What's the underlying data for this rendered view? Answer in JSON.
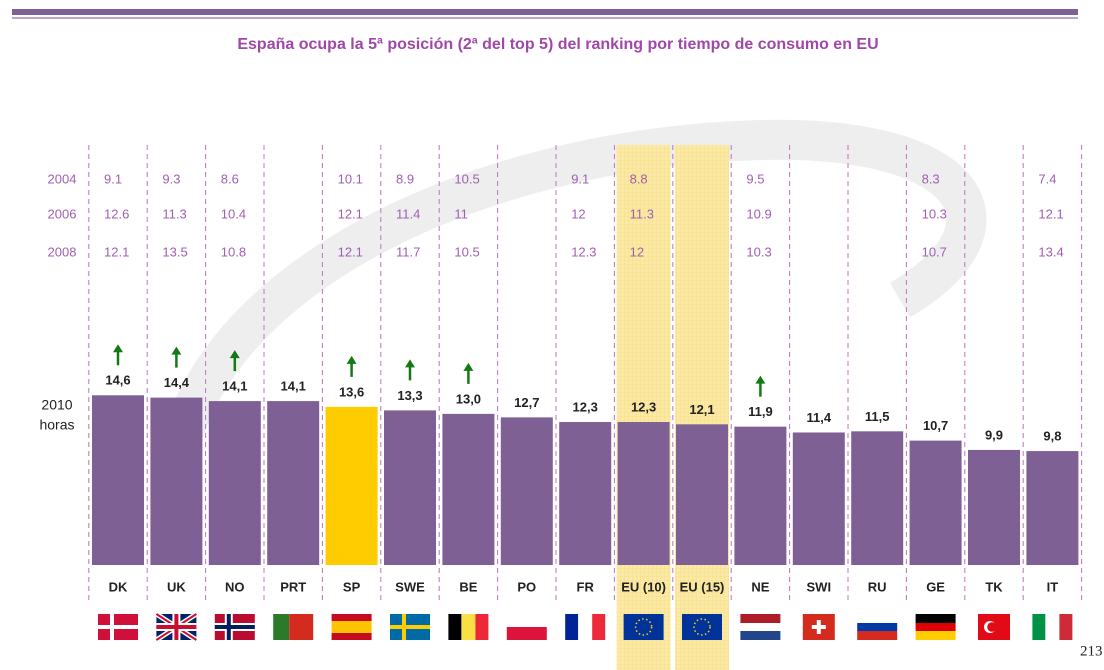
{
  "chart_data": {
    "type": "bar",
    "title": "España ocupa la 5ª posición (2ª del top 5) del ranking por tiempo de consumo en EU",
    "categories": [
      "DK",
      "UK",
      "NO",
      "PRT",
      "SP",
      "SWE",
      "BE",
      "PO",
      "FR",
      "EU (10)",
      "EU (15)",
      "NE",
      "SWI",
      "RU",
      "GE",
      "TK",
      "IT"
    ],
    "series_label": "2010",
    "unit_label": "horas",
    "values": [
      14.6,
      14.4,
      14.1,
      14.1,
      13.6,
      13.3,
      13.0,
      12.7,
      12.3,
      12.3,
      12.1,
      11.9,
      11.4,
      11.5,
      10.7,
      9.9,
      9.8
    ],
    "value_labels": [
      "14,6",
      "14,4",
      "14,1",
      "14,1",
      "13,6",
      "13,3",
      "13,0",
      "12,7",
      "12,3",
      "12,3",
      "12,1",
      "11,9",
      "11,4",
      "11,5",
      "10,7",
      "9,9",
      "9,8"
    ],
    "colors": [
      "#7f6095",
      "#7f6095",
      "#7f6095",
      "#7f6095",
      "#ffcc00",
      "#7f6095",
      "#7f6095",
      "#7f6095",
      "#7f6095",
      "#7f6095",
      "#7f6095",
      "#7f6095",
      "#7f6095",
      "#7f6095",
      "#7f6095",
      "#7f6095",
      "#7f6095"
    ],
    "up_arrows": [
      true,
      true,
      true,
      false,
      true,
      true,
      true,
      false,
      false,
      false,
      false,
      true,
      false,
      false,
      false,
      false,
      false
    ],
    "highlight_columns": [
      false,
      false,
      false,
      false,
      false,
      false,
      false,
      false,
      false,
      true,
      true,
      false,
      false,
      false,
      false,
      false,
      false
    ],
    "ylim": [
      0,
      16
    ],
    "rows": [
      {
        "name": "2004",
        "values": [
          9.1,
          9.3,
          8.6,
          null,
          10.1,
          8.9,
          10.5,
          null,
          9.1,
          8.8,
          null,
          9.5,
          null,
          null,
          8.3,
          null,
          7.4
        ]
      },
      {
        "name": "2006",
        "values": [
          12.6,
          11.3,
          10.4,
          null,
          12.1,
          11.4,
          11,
          null,
          12,
          11.3,
          null,
          10.9,
          null,
          null,
          10.3,
          null,
          12.1
        ]
      },
      {
        "name": "2008",
        "values": [
          12.1,
          13.5,
          10.8,
          null,
          12.1,
          11.7,
          10.5,
          null,
          12.3,
          12,
          null,
          10.3,
          null,
          null,
          10.7,
          null,
          13.4
        ]
      }
    ],
    "page_number": "213"
  }
}
